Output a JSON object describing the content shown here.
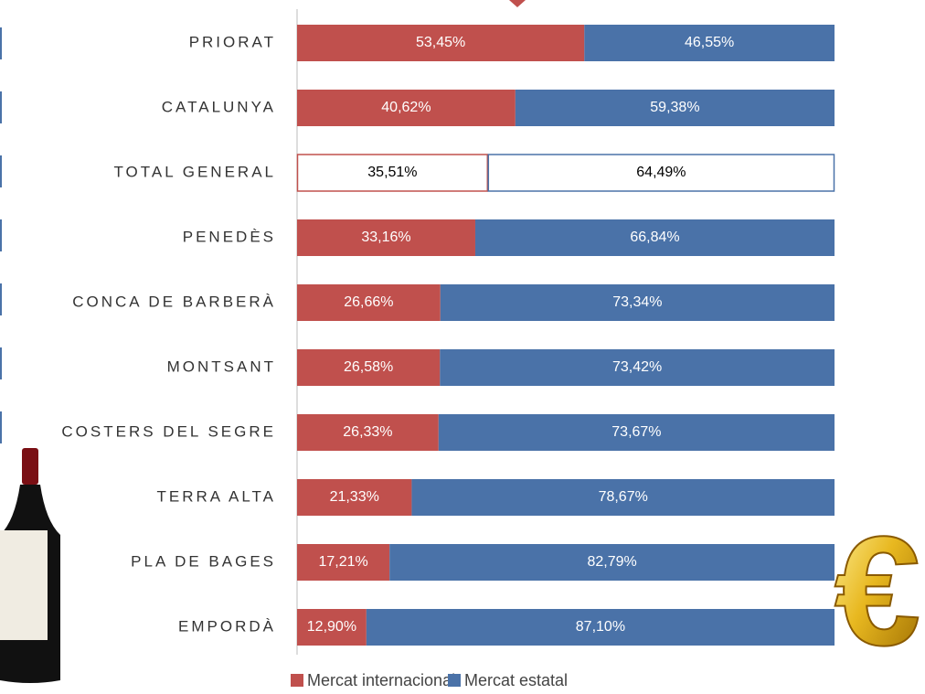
{
  "chart_data": {
    "type": "stacked-bar-horizontal",
    "categories": [
      "PRIORAT",
      "CATALUNYA",
      "TOTAL GENERAL",
      "PENEDÈS",
      "CONCA DE BARBERÀ",
      "MONTSANT",
      "COSTERS DEL SEGRE",
      "TERRA ALTA",
      "PLA DE BAGES",
      "EMPORDÀ"
    ],
    "series": [
      {
        "name": "Mercat internacional",
        "color": "#c0504d",
        "values": [
          53.45,
          40.62,
          35.51,
          33.16,
          26.66,
          26.58,
          26.33,
          21.33,
          17.21,
          12.9
        ],
        "value_labels": [
          "53,45%",
          "40,62%",
          "35,51%",
          "33,16%",
          "26,66%",
          "26,58%",
          "26,33%",
          "21,33%",
          "17,21%",
          "12,90%"
        ]
      },
      {
        "name": "Mercat estatal",
        "color": "#4a72a8",
        "values": [
          46.55,
          59.38,
          64.49,
          66.84,
          73.34,
          73.42,
          73.67,
          78.67,
          82.79,
          87.1
        ],
        "value_labels": [
          "46,55%",
          "59,38%",
          "64,49%",
          "66,84%",
          "73,34%",
          "73,42%",
          "73,67%",
          "78,67%",
          "82,79%",
          "87,10%"
        ]
      }
    ],
    "xlim": [
      0,
      100
    ],
    "outlined_row": 2
  }
}
